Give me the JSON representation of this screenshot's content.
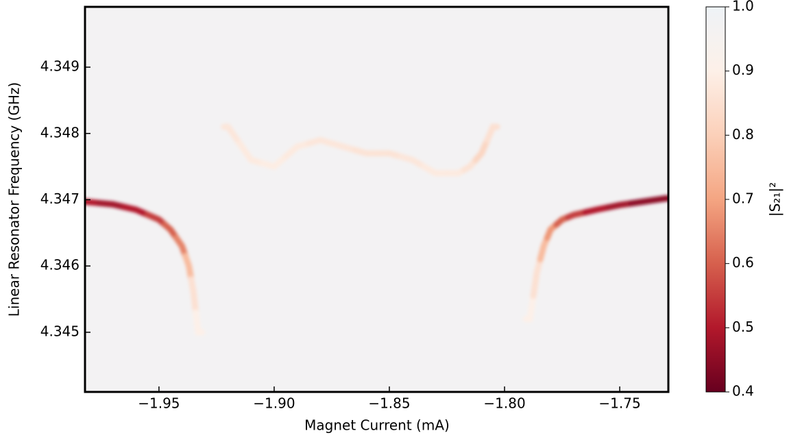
{
  "chart_data": {
    "type": "heatmap",
    "xlabel": "Magnet Current (mA)",
    "ylabel": "Linear Resonator Frequency (GHz)",
    "colorbar_label": "|S₂₁|²",
    "xlim": [
      -1.9821,
      -1.7289
    ],
    "ylim": [
      4.3441,
      4.34991
    ],
    "zlim": [
      0.4,
      1.0
    ],
    "background": 0.97,
    "xticks": [
      {
        "value": -1.95,
        "label": "−1.95"
      },
      {
        "value": -1.9,
        "label": "−1.90"
      },
      {
        "value": -1.85,
        "label": "−1.85"
      },
      {
        "value": -1.8,
        "label": "−1.80"
      },
      {
        "value": -1.75,
        "label": "−1.75"
      }
    ],
    "yticks": [
      4.345,
      4.346,
      4.347,
      4.348,
      4.349
    ],
    "zticks": [
      0.4,
      0.5,
      0.6,
      0.7,
      0.8,
      0.9,
      {
        "value": 1,
        "label": "1.0"
      }
    ],
    "traces": [
      {
        "x": [
          -1.982,
          -1.97,
          -1.96,
          -1.95,
          -1.945,
          -1.94,
          -1.937,
          -1.935,
          -1.933
        ],
        "y": [
          4.34697,
          4.34693,
          4.34685,
          4.3467,
          4.34655,
          4.3463,
          4.346,
          4.3456,
          4.345
        ],
        "z": [
          0.5,
          0.48,
          0.5,
          0.55,
          0.6,
          0.65,
          0.75,
          0.85,
          0.9
        ]
      },
      {
        "x": [
          -1.92,
          -1.91,
          -1.9,
          -1.89,
          -1.88,
          -1.87,
          -1.86,
          -1.85,
          -1.84,
          -1.83,
          -1.82,
          -1.815,
          -1.81,
          -1.805
        ],
        "y": [
          4.3481,
          4.3476,
          4.3475,
          4.3478,
          4.3479,
          4.3478,
          4.3477,
          4.3477,
          4.3476,
          4.3474,
          4.3474,
          4.3475,
          4.3477,
          4.3481
        ],
        "z": [
          0.87,
          0.88,
          0.89,
          0.88,
          0.87,
          0.87,
          0.86,
          0.86,
          0.87,
          0.88,
          0.88,
          0.86,
          0.82,
          0.85
        ]
      },
      {
        "x": [
          -1.789,
          -1.786,
          -1.783,
          -1.78,
          -1.775,
          -1.77,
          -1.76,
          -1.75,
          -1.74,
          -1.73
        ],
        "y": [
          4.3452,
          4.3459,
          4.3463,
          4.34655,
          4.3467,
          4.34677,
          4.34685,
          4.34692,
          4.34697,
          4.34702
        ],
        "z": [
          0.9,
          0.85,
          0.75,
          0.68,
          0.6,
          0.55,
          0.5,
          0.48,
          0.45,
          0.45
        ]
      }
    ]
  }
}
